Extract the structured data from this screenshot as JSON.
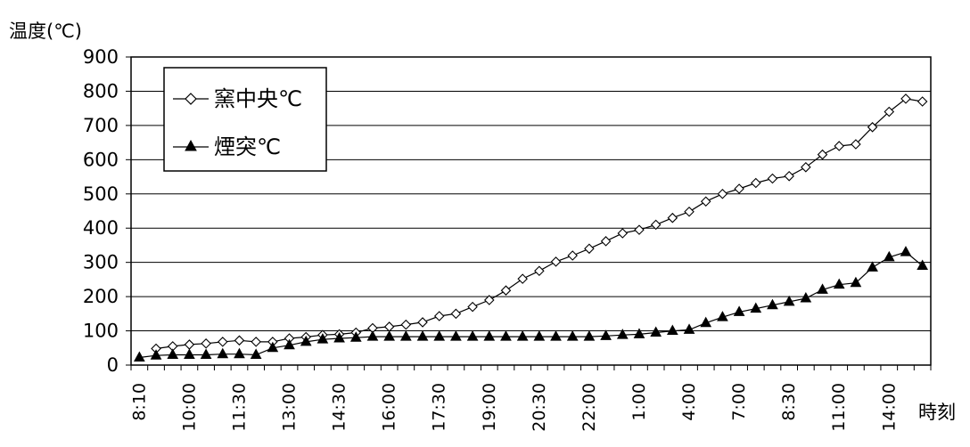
{
  "chart_data": {
    "type": "line",
    "ylabel": "温度(℃)",
    "xlabel": "時刻",
    "ylim": [
      0,
      900
    ],
    "yticks": [
      0,
      100,
      200,
      300,
      400,
      500,
      600,
      700,
      800,
      900
    ],
    "grid": true,
    "legend_position": "top-left",
    "x_tick_labels": [
      "8:10",
      "10:00",
      "11:30",
      "13:00",
      "14:30",
      "16:00",
      "17:30",
      "19:00",
      "20:30",
      "22:00",
      "1:00",
      "4:00",
      "7:00",
      "8:30",
      "11:00",
      "14:00"
    ],
    "series": [
      {
        "name": "窯中央℃",
        "marker": "diamond-open",
        "color": "#000000",
        "values": [
          null,
          48,
          55,
          60,
          63,
          68,
          72,
          68,
          68,
          78,
          82,
          88,
          90,
          95,
          108,
          112,
          118,
          125,
          143,
          150,
          170,
          190,
          218,
          252,
          275,
          302,
          320,
          340,
          362,
          385,
          395,
          410,
          430,
          448,
          478,
          500,
          515,
          532,
          545,
          552,
          578,
          615,
          640,
          645,
          695,
          740,
          778,
          770
        ]
      },
      {
        "name": "煙突℃",
        "marker": "triangle-filled",
        "color": "#000000",
        "values": [
          22,
          28,
          30,
          30,
          30,
          32,
          32,
          30,
          50,
          58,
          68,
          75,
          78,
          80,
          83,
          83,
          83,
          83,
          83,
          83,
          83,
          83,
          83,
          83,
          83,
          83,
          83,
          83,
          85,
          88,
          90,
          95,
          100,
          103,
          123,
          140,
          155,
          165,
          175,
          185,
          195,
          220,
          235,
          240,
          285,
          315,
          330,
          290
        ]
      }
    ]
  }
}
